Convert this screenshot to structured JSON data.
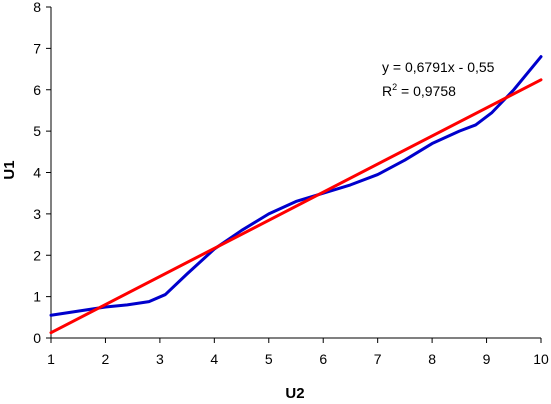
{
  "chart_data": {
    "type": "line",
    "title": "",
    "xlabel": "U2",
    "ylabel": "U1",
    "xlim": [
      1,
      10
    ],
    "ylim": [
      0,
      8
    ],
    "x_ticks": [
      "1",
      "2",
      "3",
      "4",
      "5",
      "6",
      "7",
      "8",
      "9",
      "10"
    ],
    "y_ticks": [
      "0",
      "1",
      "2",
      "3",
      "4",
      "5",
      "6",
      "7",
      "8"
    ],
    "grid": false,
    "legend": "none",
    "series": [
      {
        "color": "#0000cc",
        "x": [
          1.0,
          1.5,
          2.0,
          2.4,
          2.8,
          3.1,
          3.5,
          4.0,
          4.5,
          5.0,
          5.5,
          6.0,
          6.5,
          7.0,
          7.5,
          8.0,
          8.5,
          8.8,
          9.1,
          9.5,
          10.0
        ],
        "y": [
          0.55,
          0.65,
          0.75,
          0.8,
          0.88,
          1.05,
          1.55,
          2.15,
          2.6,
          3.0,
          3.3,
          3.5,
          3.7,
          3.95,
          4.3,
          4.7,
          5.0,
          5.15,
          5.45,
          6.0,
          6.8
        ]
      },
      {
        "color": "#ff0000",
        "x": [
          1,
          10
        ],
        "y": [
          0.1291,
          6.241
        ]
      }
    ],
    "annotation": {
      "equation": "y = 0,6791x - 0,55",
      "r2_prefix": "R",
      "r2_sup": "2",
      "r2_value": " = 0,9758"
    }
  }
}
